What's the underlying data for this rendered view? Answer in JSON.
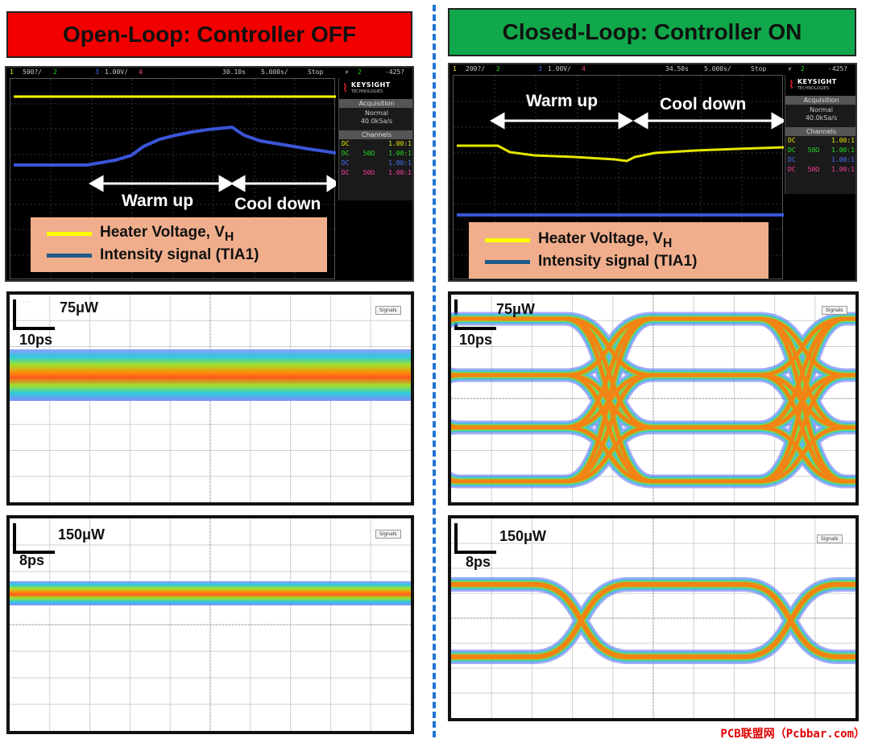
{
  "left": {
    "banner": "Open-Loop: Controller OFF",
    "banner_color": "#f20000",
    "scope": {
      "topbar": {
        "ch1": "1",
        "v1": "500?/",
        "ch2": "2",
        "ch3": "3",
        "v3": "1.00V/",
        "ch4": "4",
        "time": "30.10s",
        "timebase": "5.000s/",
        "state": "Stop",
        "trig": "2",
        "trigv": "-425?"
      },
      "brand": "KEYSIGHT",
      "brand_sub": "TECHNOLOGIES",
      "acq_header": "Acquisition",
      "acq_mode": "Normal",
      "acq_rate": "40.0kSa/s",
      "channels_header": "Channels",
      "channels": [
        {
          "cpl": "DC",
          "imp": "",
          "ratio": "1.00:1",
          "color": "#e8e800"
        },
        {
          "cpl": "DC",
          "imp": "50Ω",
          "ratio": "1.00:1",
          "color": "#22dd22"
        },
        {
          "cpl": "DC",
          "imp": "",
          "ratio": "1.00:1",
          "color": "#4a70ff"
        },
        {
          "cpl": "DC",
          "imp": "50Ω",
          "ratio": "1.00:1",
          "color": "#ff3fa0"
        }
      ],
      "warm_label": "Warm up",
      "cool_label": "Cool down",
      "legend": {
        "heater": "Heater Voltage, V",
        "heater_sub": "H",
        "intensity": "Intensity signal (TIA1)"
      }
    },
    "eye1": {
      "power": "75μW",
      "time": "10ps",
      "button": "Signals"
    },
    "eye2": {
      "power": "150μW",
      "time": "8ps",
      "button": "Signals"
    }
  },
  "right": {
    "banner": "Closed-Loop: Controller ON",
    "banner_color": "#10a84a",
    "scope": {
      "topbar": {
        "ch1": "1",
        "v1": "200?/",
        "ch2": "2",
        "ch3": "3",
        "v3": "1.00V/",
        "ch4": "4",
        "time": "34.50s",
        "timebase": "5.000s/",
        "state": "Stop",
        "trig": "2",
        "trigv": "-425?"
      },
      "brand": "KEYSIGHT",
      "brand_sub": "TECHNOLOGIES",
      "acq_header": "Acquisition",
      "acq_mode": "Normal",
      "acq_rate": "40.0kSa/s",
      "channels_header": "Channels",
      "channels": [
        {
          "cpl": "DC",
          "imp": "",
          "ratio": "1.00:1",
          "color": "#e8e800"
        },
        {
          "cpl": "DC",
          "imp": "50Ω",
          "ratio": "1.00:1",
          "color": "#22dd22"
        },
        {
          "cpl": "DC",
          "imp": "",
          "ratio": "1.00:1",
          "color": "#4a70ff"
        },
        {
          "cpl": "DC",
          "imp": "50Ω",
          "ratio": "1.00:1",
          "color": "#ff3fa0"
        }
      ],
      "warm_label": "Warm up",
      "cool_label": "Cool down",
      "legend": {
        "heater": "Heater Voltage, V",
        "heater_sub": "H",
        "intensity": "Intensity signal (TIA1)"
      }
    },
    "eye1": {
      "power": "75μW",
      "time": "10ps",
      "button": "Signals"
    },
    "eye2": {
      "power": "150μW",
      "time": "8ps",
      "button": "Signals"
    }
  },
  "colors": {
    "heater_trace": "#ffff00",
    "intensity_trace": "#3a55d8",
    "legend_bg": "#f0ae8c",
    "divider": "#1f74d6"
  },
  "watermark": "PCB联盟网（Pcbbar.com）"
}
